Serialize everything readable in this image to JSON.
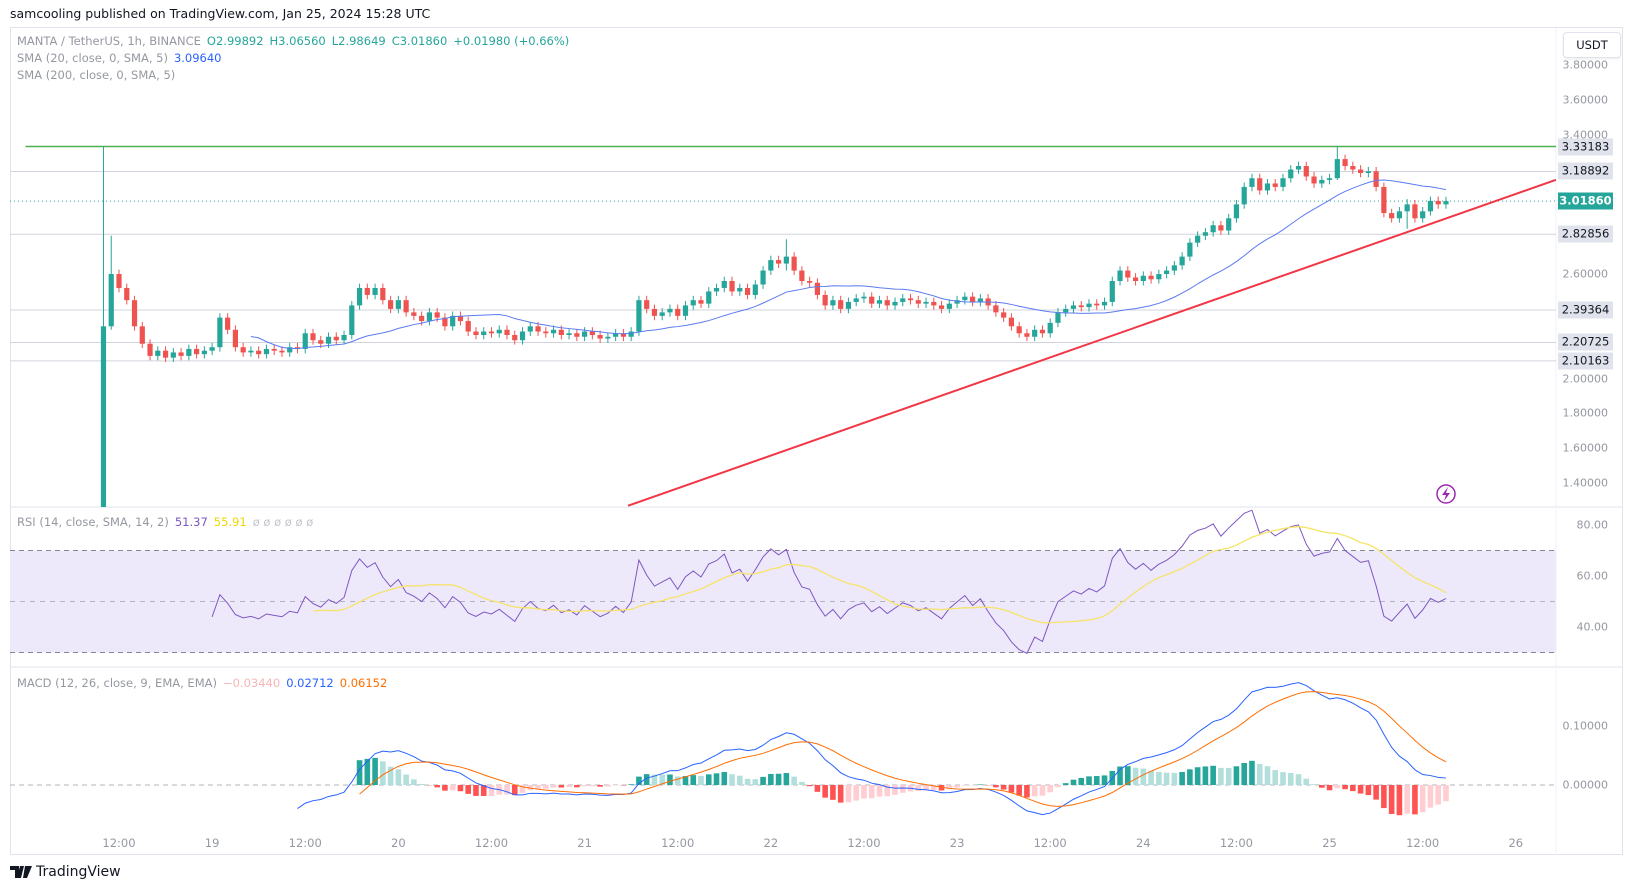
{
  "publisher_line": "samcooling published on TradingView.com, Jan 25, 2024 15:28 UTC",
  "legend": {
    "symbol": "MANTA / TetherUS, 1h, BINANCE",
    "open": "O2.99892",
    "high": "H3.06560",
    "low": "L2.98649",
    "close": "C3.01860",
    "change": "+0.01980 (+0.66%)",
    "sma20_label": "SMA (20, close, 0, SMA, 5)",
    "sma20_value": "3.09640",
    "sma200_label": "SMA (200, close, 0, SMA, 5)"
  },
  "rsi_legend": {
    "label": "RSI (14, close, SMA, 14, 2)",
    "rsi": "51.37",
    "sma": "55.91",
    "empty": "ø ø ø ø ø ø"
  },
  "macd_legend": {
    "label": "MACD (12, 26, close, 9, EMA, EMA)",
    "hist": "−0.03440",
    "macd": "0.02712",
    "signal": "0.06152"
  },
  "currency_button": "USDT",
  "branding": "TradingView",
  "colors": {
    "up": "#26a69a",
    "down": "#ef5350",
    "sma20": "#5b7bf0",
    "support_line": "#4caf50",
    "trendline": "#f23645",
    "rsi": "#7e57c2",
    "rsi_sma": "#f7e36a",
    "macd": "#2962ff",
    "signal": "#ff6d00",
    "current_price": "#26a69a"
  },
  "chart_data": [
    {
      "type": "candlestick",
      "interval": "1h",
      "start": "2024-01-18 10:00",
      "first_open": 1.25,
      "closes": [
        2.3,
        2.6,
        2.52,
        2.45,
        2.3,
        2.2,
        2.13,
        2.16,
        2.12,
        2.15,
        2.13,
        2.17,
        2.14,
        2.16,
        2.18,
        2.35,
        2.28,
        2.18,
        2.15,
        2.16,
        2.14,
        2.17,
        2.16,
        2.15,
        2.18,
        2.17,
        2.26,
        2.22,
        2.2,
        2.24,
        2.22,
        2.25,
        2.42,
        2.52,
        2.48,
        2.52,
        2.45,
        2.4,
        2.45,
        2.38,
        2.36,
        2.33,
        2.38,
        2.35,
        2.3,
        2.36,
        2.33,
        2.27,
        2.25,
        2.27,
        2.26,
        2.28,
        2.25,
        2.22,
        2.27,
        2.3,
        2.27,
        2.26,
        2.28,
        2.25,
        2.26,
        2.24,
        2.27,
        2.25,
        2.23,
        2.24,
        2.26,
        2.24,
        2.27,
        2.45,
        2.4,
        2.36,
        2.38,
        2.4,
        2.36,
        2.42,
        2.45,
        2.43,
        2.5,
        2.52,
        2.56,
        2.5,
        2.52,
        2.48,
        2.54,
        2.62,
        2.68,
        2.66,
        2.7,
        2.62,
        2.56,
        2.55,
        2.48,
        2.42,
        2.45,
        2.4,
        2.44,
        2.46,
        2.47,
        2.43,
        2.45,
        2.42,
        2.44,
        2.46,
        2.45,
        2.43,
        2.44,
        2.42,
        2.4,
        2.43,
        2.45,
        2.47,
        2.44,
        2.46,
        2.42,
        2.38,
        2.35,
        2.3,
        2.26,
        2.24,
        2.28,
        2.26,
        2.32,
        2.38,
        2.4,
        2.42,
        2.41,
        2.43,
        2.42,
        2.44,
        2.56,
        2.62,
        2.58,
        2.56,
        2.59,
        2.57,
        2.6,
        2.62,
        2.65,
        2.7,
        2.78,
        2.82,
        2.84,
        2.88,
        2.85,
        2.92,
        3.0,
        3.1,
        3.15,
        3.08,
        3.12,
        3.1,
        3.15,
        3.2,
        3.22,
        3.16,
        3.12,
        3.14,
        3.15,
        3.26,
        3.22,
        3.2,
        3.18,
        3.19,
        3.1,
        2.95,
        2.92,
        2.96,
        3.0,
        2.92,
        2.96,
        3.02,
        3.0,
        3.0186
      ],
      "extremes": {
        "0": [
          3.33183,
          1.2
        ],
        "1": [
          2.82,
          2.28
        ],
        "88": [
          2.8,
          2.62
        ],
        "159": [
          3.33183,
          3.14
        ],
        "168": [
          3.03,
          2.86
        ]
      },
      "ylim": [
        1.37,
        3.9
      ],
      "y_ticks": [
        "3.80000",
        "3.60000",
        "3.40000",
        "2.60000",
        "2.00000",
        "1.80000",
        "1.60000",
        "1.40000"
      ],
      "horizontal_levels": [
        {
          "price": 3.33183,
          "label": "3.33183",
          "color": "#4caf50",
          "from": "2024-01-18 10:00"
        },
        {
          "price": 3.18892,
          "label": "3.18892"
        },
        {
          "price": 2.82856,
          "label": "2.82856"
        },
        {
          "price": 2.39364,
          "label": "2.39364"
        },
        {
          "price": 2.20725,
          "label": "2.20725"
        },
        {
          "price": 2.10163,
          "label": "2.10163"
        }
      ],
      "current_price": {
        "price": 3.0186,
        "label": "3.01860"
      },
      "trendline": [
        [
          "2024-01-21 05:36",
          1.27
        ],
        [
          "2024-01-26 00:00",
          3.06
        ]
      ],
      "x_ticks": [
        "12:00",
        "19",
        "12:00",
        "20",
        "12:00",
        "21",
        "12:00",
        "22",
        "12:00",
        "23",
        "12:00",
        "24",
        "12:00",
        "25",
        "12:00",
        "26"
      ],
      "x_tick_start": "2024-01-18 12:00",
      "x_tick_step_hours": 12
    },
    {
      "type": "line",
      "name": "RSI (14)",
      "ylim": [
        24,
        87
      ],
      "y_ticks": [
        "80.00",
        "60.00",
        "40.00"
      ],
      "bands": [
        70,
        50,
        30
      ]
    },
    {
      "type": "bar+line",
      "name": "MACD (12, 26, 9)",
      "y_ticks": [
        "0.10000",
        "0.00000"
      ]
    }
  ]
}
